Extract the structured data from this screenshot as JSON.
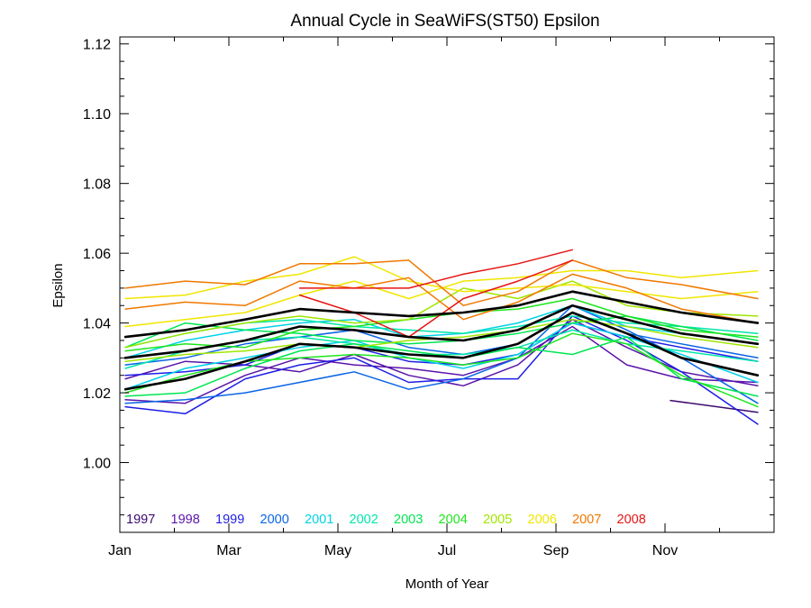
{
  "chart_data": {
    "type": "line",
    "title": "Annual Cycle in SeaWiFS(ST50) Epsilon",
    "xlabel": "Month of Year",
    "ylabel": "Epsilon",
    "xlim": [
      1,
      13
    ],
    "ylim": [
      0.98,
      1.122
    ],
    "x_ticks": [
      {
        "value": 1,
        "label": "Jan"
      },
      {
        "value": 3,
        "label": "Mar"
      },
      {
        "value": 5,
        "label": "May"
      },
      {
        "value": 7,
        "label": "Jul"
      },
      {
        "value": 9,
        "label": "Sep"
      },
      {
        "value": 11,
        "label": "Nov"
      }
    ],
    "y_ticks": [
      {
        "value": 1.0,
        "label": "1.00"
      },
      {
        "value": 1.02,
        "label": "1.02"
      },
      {
        "value": 1.04,
        "label": "1.04"
      },
      {
        "value": 1.06,
        "label": "1.06"
      },
      {
        "value": 1.08,
        "label": "1.08"
      },
      {
        "value": 1.1,
        "label": "1.10"
      },
      {
        "value": 1.12,
        "label": "1.12"
      }
    ],
    "grid": false,
    "legend_position": "bottom-left",
    "legend": [
      {
        "label": "1997",
        "color": "#3c0a6e"
      },
      {
        "label": "1998",
        "color": "#5a14aa"
      },
      {
        "label": "1999",
        "color": "#1e1ee6"
      },
      {
        "label": "2000",
        "color": "#0a64e6"
      },
      {
        "label": "2001",
        "color": "#00d2e6"
      },
      {
        "label": "2002",
        "color": "#00e6aa"
      },
      {
        "label": "2003",
        "color": "#00e650"
      },
      {
        "label": "2004",
        "color": "#1ee61e"
      },
      {
        "label": "2005",
        "color": "#a0e600"
      },
      {
        "label": "2006",
        "color": "#f0e600"
      },
      {
        "label": "2007",
        "color": "#f07800"
      },
      {
        "label": "2008",
        "color": "#e61414"
      }
    ],
    "series": [
      {
        "color": "#3c0a6e",
        "x": [
          11.1,
          12.7
        ],
        "y": [
          1.0178,
          1.0144
        ]
      },
      {
        "color": "#5a14aa",
        "x": [
          1.1,
          2.2,
          3.3,
          4.3,
          5.3,
          6.3,
          7.3,
          8.3,
          9.3,
          10.3,
          11.3,
          12.7
        ],
        "y": [
          1.024,
          1.029,
          1.028,
          1.026,
          1.031,
          1.025,
          1.022,
          1.028,
          1.041,
          1.033,
          1.026,
          1.022
        ]
      },
      {
        "color": "#5a14aa",
        "x": [
          1.1,
          2.2,
          3.3,
          4.3,
          5.3,
          6.3,
          7.3,
          8.3,
          9.3,
          10.3,
          11.3,
          12.7
        ],
        "y": [
          1.018,
          1.017,
          1.025,
          1.03,
          1.028,
          1.027,
          1.025,
          1.03,
          1.039,
          1.028,
          1.024,
          1.023
        ]
      },
      {
        "color": "#1e1ee6",
        "x": [
          1.1,
          2.2,
          3.3,
          4.3,
          5.3,
          6.3,
          7.3,
          8.3,
          9.3,
          10.3,
          11.3,
          12.7
        ],
        "y": [
          1.016,
          1.014,
          1.024,
          1.028,
          1.03,
          1.023,
          1.024,
          1.024,
          1.042,
          1.035,
          1.026,
          1.011
        ]
      },
      {
        "color": "#1e1ee6",
        "x": [
          1.1,
          2.2,
          3.3,
          4.3,
          5.3,
          6.3,
          7.3,
          8.3,
          9.3,
          10.3,
          11.3,
          12.7
        ],
        "y": [
          1.025,
          1.026,
          1.028,
          1.034,
          1.033,
          1.029,
          1.028,
          1.031,
          1.04,
          1.036,
          1.033,
          1.029
        ]
      },
      {
        "color": "#0a64e6",
        "x": [
          1.1,
          2.2,
          3.3,
          4.3,
          5.3,
          6.3,
          7.3,
          8.3,
          9.3,
          10.3,
          11.3,
          12.7
        ],
        "y": [
          1.017,
          1.018,
          1.02,
          1.023,
          1.026,
          1.021,
          1.024,
          1.03,
          1.045,
          1.038,
          1.03,
          1.017
        ]
      },
      {
        "color": "#0a64e6",
        "x": [
          1.1,
          2.2,
          3.3,
          4.3,
          5.3,
          6.3,
          7.3,
          8.3,
          9.3,
          10.3,
          11.3,
          12.7
        ],
        "y": [
          1.028,
          1.03,
          1.034,
          1.036,
          1.038,
          1.033,
          1.031,
          1.034,
          1.043,
          1.037,
          1.034,
          1.03
        ]
      },
      {
        "color": "#00d2e6",
        "x": [
          1.1,
          2.2,
          3.3,
          4.3,
          5.3,
          6.3,
          7.3,
          8.3,
          9.3,
          10.3,
          11.3,
          12.7
        ],
        "y": [
          1.021,
          1.027,
          1.03,
          1.033,
          1.035,
          1.03,
          1.027,
          1.031,
          1.04,
          1.036,
          1.031,
          1.023
        ]
      },
      {
        "color": "#00d2e6",
        "x": [
          1.1,
          2.2,
          3.3,
          4.3,
          5.3,
          6.3,
          7.3,
          8.3,
          9.3,
          10.3,
          11.3,
          12.7
        ],
        "y": [
          1.03,
          1.035,
          1.038,
          1.04,
          1.041,
          1.036,
          1.037,
          1.04,
          1.045,
          1.039,
          1.037,
          1.034
        ]
      },
      {
        "color": "#00e6aa",
        "x": [
          1.1,
          2.2,
          3.3,
          4.3,
          5.3,
          6.3,
          7.3,
          8.3,
          9.3,
          10.3,
          11.3,
          12.7
        ],
        "y": [
          1.027,
          1.032,
          1.035,
          1.036,
          1.034,
          1.031,
          1.031,
          1.033,
          1.038,
          1.034,
          1.032,
          1.029
        ]
      },
      {
        "color": "#00e6aa",
        "x": [
          1.1,
          2.2,
          3.3,
          4.3,
          5.3,
          6.3,
          7.3,
          8.3,
          9.3,
          10.3,
          11.3,
          12.7
        ],
        "y": [
          1.033,
          1.037,
          1.04,
          1.041,
          1.039,
          1.038,
          1.037,
          1.039,
          1.042,
          1.04,
          1.039,
          1.037
        ]
      },
      {
        "color": "#00e650",
        "x": [
          1.1,
          2.2,
          3.3,
          4.3,
          5.3,
          6.3,
          7.3,
          8.3,
          9.3,
          10.3,
          11.3,
          12.7
        ],
        "y": [
          1.019,
          1.02,
          1.027,
          1.032,
          1.034,
          1.032,
          1.03,
          1.033,
          1.031,
          1.036,
          1.024,
          1.019
        ]
      },
      {
        "color": "#00e650",
        "x": [
          1.1,
          2.2,
          3.3,
          4.3,
          5.3,
          6.3,
          7.3,
          8.3,
          9.3,
          10.3,
          11.3,
          12.7
        ],
        "y": [
          1.033,
          1.04,
          1.038,
          1.037,
          1.035,
          1.034,
          1.035,
          1.037,
          1.04,
          1.042,
          1.039,
          1.035
        ]
      },
      {
        "color": "#1ee61e",
        "x": [
          1.1,
          2.2,
          3.3,
          4.3,
          5.3,
          6.3,
          7.3,
          8.3,
          9.3,
          10.3,
          11.3,
          12.7
        ],
        "y": [
          1.02,
          1.025,
          1.029,
          1.03,
          1.031,
          1.03,
          1.028,
          1.03,
          1.037,
          1.034,
          1.025,
          1.016
        ]
      },
      {
        "color": "#1ee61e",
        "x": [
          1.1,
          2.2,
          3.3,
          4.3,
          5.3,
          6.3,
          7.3,
          8.3,
          9.3,
          10.3,
          11.3,
          12.7
        ],
        "y": [
          1.032,
          1.034,
          1.033,
          1.038,
          1.039,
          1.041,
          1.043,
          1.044,
          1.047,
          1.042,
          1.038,
          1.036
        ]
      },
      {
        "color": "#a0e600",
        "x": [
          1.1,
          2.2,
          3.3,
          4.3,
          5.3,
          6.3,
          7.3,
          8.3,
          9.3,
          10.3,
          11.3,
          12.7
        ],
        "y": [
          1.029,
          1.031,
          1.032,
          1.034,
          1.033,
          1.035,
          1.036,
          1.038,
          1.041,
          1.039,
          1.036,
          1.033
        ]
      },
      {
        "color": "#a0e600",
        "x": [
          1.1,
          2.2,
          3.3,
          4.3,
          5.3,
          6.3,
          7.3,
          8.3,
          9.3,
          10.3,
          11.3,
          12.7
        ],
        "y": [
          1.033,
          1.037,
          1.04,
          1.042,
          1.04,
          1.041,
          1.05,
          1.047,
          1.052,
          1.045,
          1.043,
          1.042
        ]
      },
      {
        "color": "#f0e600",
        "x": [
          1.1,
          2.2,
          3.3,
          4.3,
          5.3,
          6.3,
          7.3,
          8.3,
          9.3,
          10.3,
          11.3,
          12.7
        ],
        "y": [
          1.039,
          1.041,
          1.043,
          1.048,
          1.052,
          1.047,
          1.052,
          1.053,
          1.055,
          1.055,
          1.053,
          1.055
        ]
      },
      {
        "color": "#f0e600",
        "x": [
          1.1,
          2.2,
          3.3,
          4.3,
          5.3,
          6.3,
          7.3,
          8.3,
          9.3,
          10.3,
          11.3,
          12.7
        ],
        "y": [
          1.047,
          1.048,
          1.052,
          1.054,
          1.059,
          1.052,
          1.049,
          1.05,
          1.051,
          1.049,
          1.047,
          1.049
        ]
      },
      {
        "color": "#f07800",
        "x": [
          1.1,
          2.2,
          3.3,
          4.3,
          5.3,
          6.3,
          7.3,
          8.3,
          9.3,
          10.3,
          11.3,
          12.7
        ],
        "y": [
          1.05,
          1.052,
          1.051,
          1.057,
          1.057,
          1.058,
          1.045,
          1.049,
          1.058,
          1.053,
          1.051,
          1.047
        ]
      },
      {
        "color": "#f07800",
        "x": [
          1.1,
          2.2,
          3.3,
          4.3,
          5.3,
          6.3,
          7.3,
          8.3,
          9.3,
          10.3,
          11.3,
          12.7
        ],
        "y": [
          1.044,
          1.046,
          1.045,
          1.052,
          1.05,
          1.053,
          1.041,
          1.046,
          1.054,
          1.05,
          1.044,
          1.04
        ]
      },
      {
        "color": "#e61414",
        "x": [
          4.3,
          5.3,
          6.3,
          7.3,
          8.3,
          9.3
        ],
        "y": [
          1.05,
          1.05,
          1.05,
          1.054,
          1.057,
          1.061
        ]
      },
      {
        "color": "#e61414",
        "x": [
          4.3,
          5.3,
          6.3,
          7.3,
          8.3,
          9.3
        ],
        "y": [
          1.048,
          1.043,
          1.036,
          1.047,
          1.052,
          1.058
        ]
      },
      {
        "color": "#000000",
        "bold": true,
        "x": [
          1.1,
          2.2,
          3.3,
          4.3,
          5.3,
          6.3,
          7.3,
          8.3,
          9.3,
          10.3,
          11.3,
          12.7
        ],
        "y": [
          1.036,
          1.038,
          1.041,
          1.044,
          1.043,
          1.042,
          1.043,
          1.045,
          1.049,
          1.046,
          1.043,
          1.04
        ]
      },
      {
        "color": "#000000",
        "bold": true,
        "x": [
          1.1,
          2.2,
          3.3,
          4.3,
          5.3,
          6.3,
          7.3,
          8.3,
          9.3,
          10.3,
          11.3,
          12.7
        ],
        "y": [
          1.03,
          1.032,
          1.035,
          1.039,
          1.038,
          1.036,
          1.035,
          1.038,
          1.045,
          1.041,
          1.037,
          1.034
        ]
      },
      {
        "color": "#000000",
        "bold": true,
        "x": [
          1.1,
          2.2,
          3.3,
          4.3,
          5.3,
          6.3,
          7.3,
          8.3,
          9.3,
          10.3,
          11.3,
          12.7
        ],
        "y": [
          1.021,
          1.024,
          1.029,
          1.034,
          1.033,
          1.031,
          1.03,
          1.034,
          1.043,
          1.037,
          1.03,
          1.025
        ]
      }
    ]
  }
}
